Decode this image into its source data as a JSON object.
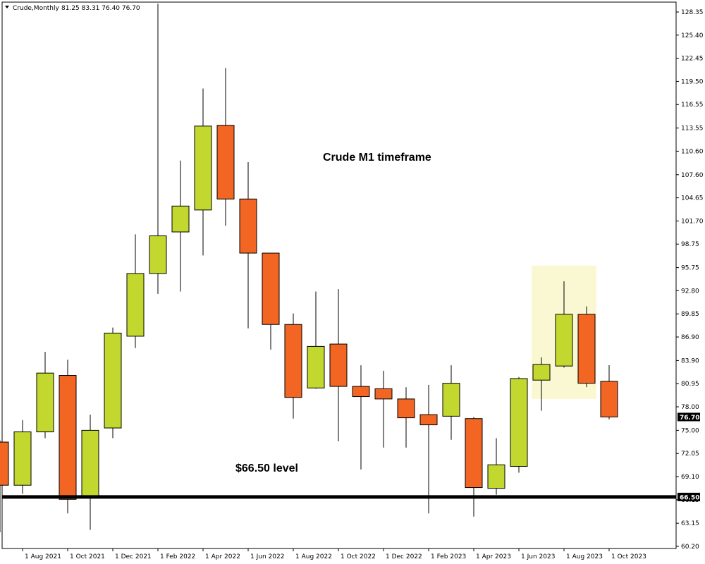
{
  "header": {
    "symbol": "Crude,Monthly",
    "ohlc_text": "81.25 83.31 76.40 76.70",
    "dropdown_icon": "triangle-down-icon"
  },
  "colors": {
    "bull": "#c3d82e",
    "bear": "#f26522",
    "outline": "#000000",
    "highlight": "#f9f8d2",
    "level_line": "#000000"
  },
  "chart_data": {
    "type": "candlestick",
    "title": "",
    "ylim": [
      60.2,
      129.4
    ],
    "y_ticks": [
      "128.35",
      "125.40",
      "122.45",
      "119.50",
      "116.55",
      "113.55",
      "110.60",
      "107.60",
      "104.65",
      "101.70",
      "98.75",
      "95.75",
      "92.80",
      "89.85",
      "86.90",
      "83.90",
      "80.95",
      "78.00",
      "75.00",
      "72.05",
      "69.10",
      "66.15",
      "63.15",
      "60.20"
    ],
    "x_tick_labels": [
      "1 Aug 2021",
      "1 Oct 2021",
      "1 Dec 2021",
      "1 Feb 2022",
      "1 Apr 2022",
      "1 Jun 2022",
      "1 Aug 2022",
      "1 Oct 2022",
      "1 Dec 2022",
      "1 Feb 2023",
      "1 Apr 2023",
      "1 Jun 2023",
      "1 Aug 2023",
      "1 Oct 2023"
    ],
    "candles": [
      {
        "open": 73.5,
        "high": 73.7,
        "low": 62.0,
        "close": 68.0
      },
      {
        "open": 68.0,
        "high": 76.3,
        "low": 66.9,
        "close": 74.8
      },
      {
        "open": 74.8,
        "high": 85.0,
        "low": 74.0,
        "close": 82.3
      },
      {
        "open": 82.0,
        "high": 84.0,
        "low": 64.4,
        "close": 66.2
      },
      {
        "open": 66.5,
        "high": 77.0,
        "low": 62.3,
        "close": 75.0
      },
      {
        "open": 75.3,
        "high": 88.1,
        "low": 74.0,
        "close": 87.4
      },
      {
        "open": 87.0,
        "high": 100.0,
        "low": 85.5,
        "close": 95.0
      },
      {
        "open": 95.0,
        "high": 129.4,
        "low": 92.4,
        "close": 99.8
      },
      {
        "open": 100.3,
        "high": 109.4,
        "low": 92.7,
        "close": 103.6
      },
      {
        "open": 103.1,
        "high": 118.6,
        "low": 97.3,
        "close": 113.8
      },
      {
        "open": 113.9,
        "high": 121.2,
        "low": 101.1,
        "close": 104.5
      },
      {
        "open": 104.5,
        "high": 109.2,
        "low": 88.0,
        "close": 97.6
      },
      {
        "open": 97.6,
        "high": 97.6,
        "low": 85.3,
        "close": 88.5
      },
      {
        "open": 88.5,
        "high": 89.9,
        "low": 76.5,
        "close": 79.2
      },
      {
        "open": 80.4,
        "high": 92.7,
        "low": 80.3,
        "close": 85.7
      },
      {
        "open": 86.0,
        "high": 93.0,
        "low": 73.6,
        "close": 80.6
      },
      {
        "open": 80.6,
        "high": 83.3,
        "low": 70.0,
        "close": 79.3
      },
      {
        "open": 80.3,
        "high": 82.6,
        "low": 72.8,
        "close": 79.0
      },
      {
        "open": 79.0,
        "high": 80.5,
        "low": 72.8,
        "close": 76.6
      },
      {
        "open": 77.0,
        "high": 80.8,
        "low": 64.4,
        "close": 75.7
      },
      {
        "open": 76.8,
        "high": 83.3,
        "low": 73.8,
        "close": 81.0
      },
      {
        "open": 76.5,
        "high": 76.7,
        "low": 64.0,
        "close": 67.7
      },
      {
        "open": 67.6,
        "high": 74.0,
        "low": 66.8,
        "close": 70.6
      },
      {
        "open": 70.4,
        "high": 81.8,
        "low": 69.6,
        "close": 81.6
      },
      {
        "open": 81.4,
        "high": 84.3,
        "low": 77.5,
        "close": 83.4
      },
      {
        "open": 83.2,
        "high": 94.0,
        "low": 83.0,
        "close": 89.8
      },
      {
        "open": 89.8,
        "high": 90.8,
        "low": 80.5,
        "close": 81.0
      },
      {
        "open": 81.25,
        "high": 83.31,
        "low": 76.4,
        "close": 76.7
      }
    ],
    "highlight_zone": {
      "first_candle": 24,
      "last_candle": 26,
      "y_top": 96.0,
      "y_bottom": 79.0
    },
    "level": {
      "value": 66.5,
      "tag": "66.50"
    },
    "current_price": {
      "value": 76.7,
      "tag": "76.70"
    },
    "annotations": {
      "timeframe": "Crude M1 timeframe",
      "level_note": "$66.50 level"
    }
  }
}
